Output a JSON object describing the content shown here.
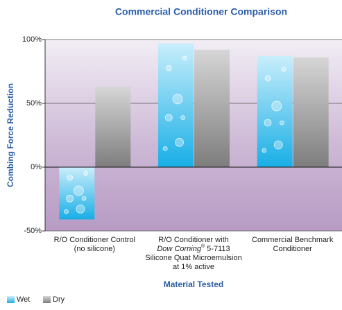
{
  "chart_data": {
    "type": "bar",
    "title": "Commercial Conditioner Comparison",
    "y_label": "Combing Force Reduction",
    "x_label": "Material Tested",
    "categories": [
      [
        [
          {
            "text": "R/O Conditioner Control"
          }
        ],
        [
          {
            "text": "(no silicone)"
          }
        ]
      ],
      [
        [
          {
            "text": "R/O Conditioner with"
          }
        ],
        [
          {
            "text": "Dow Corning",
            "italic": true
          },
          {
            "text": "®",
            "sup": true
          },
          {
            "text": " 5-7113"
          }
        ],
        [
          {
            "text": "Silicone Quat Microemulsion"
          }
        ],
        [
          {
            "text": "at 1% active"
          }
        ]
      ],
      [
        [
          {
            "text": "Commercial Benchmark"
          }
        ],
        [
          {
            "text": "Conditioner"
          }
        ]
      ]
    ],
    "series": [
      {
        "name": "Wet",
        "color": "#29b6e8",
        "values": [
          -41,
          97,
          87
        ]
      },
      {
        "name": "Dry",
        "color": "#9a9a9a",
        "values": [
          63,
          92,
          86
        ]
      }
    ],
    "ylim": [
      -50,
      100
    ],
    "yticks": [
      {
        "value": -50,
        "label": "-50%"
      },
      {
        "value": 0,
        "label": "0%"
      },
      {
        "value": 50,
        "label": "50%"
      },
      {
        "value": 100,
        "label": "100%"
      }
    ],
    "grid": true,
    "legend": "bottom-left"
  }
}
